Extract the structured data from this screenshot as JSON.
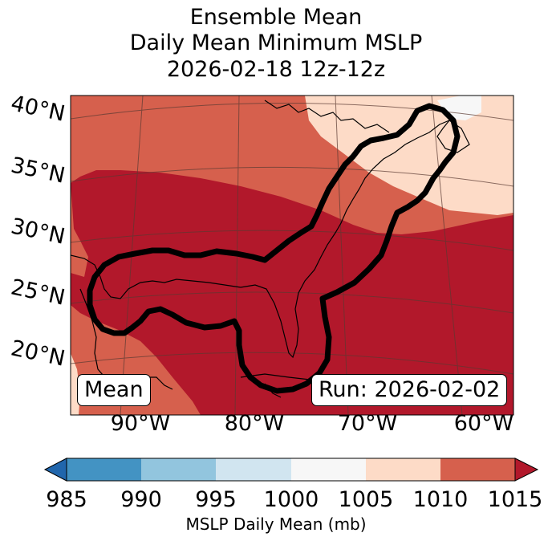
{
  "header": {
    "line1": "Ensemble Mean",
    "line2": "Daily Mean Minimum MSLP",
    "line3": "2026-02-18 12z-12z"
  },
  "map": {
    "lat_labels": [
      "40°N",
      "35°N",
      "30°N",
      "25°N",
      "20°N"
    ],
    "lon_labels": [
      "90°W",
      "80°W",
      "70°W",
      "60°W"
    ],
    "mean_box": "Mean",
    "run_box": "Run: 2026-02-02",
    "fill_colors": {
      "1005-1010": "#fddbc7",
      "1010-1015": "#d6604d",
      "above-1015": "#b2182b",
      "land-line": "#000000",
      "contour": "#000000"
    }
  },
  "colorbar": {
    "label": "MSLP Daily Mean (mb)",
    "ticks": [
      "985",
      "990",
      "995",
      "1000",
      "1005",
      "1010",
      "1015"
    ],
    "colors": [
      "#2166ac",
      "#4393c3",
      "#92c5de",
      "#d1e5f0",
      "#f7f7f7",
      "#fddbc7",
      "#d6604d",
      "#b2182b"
    ]
  }
}
